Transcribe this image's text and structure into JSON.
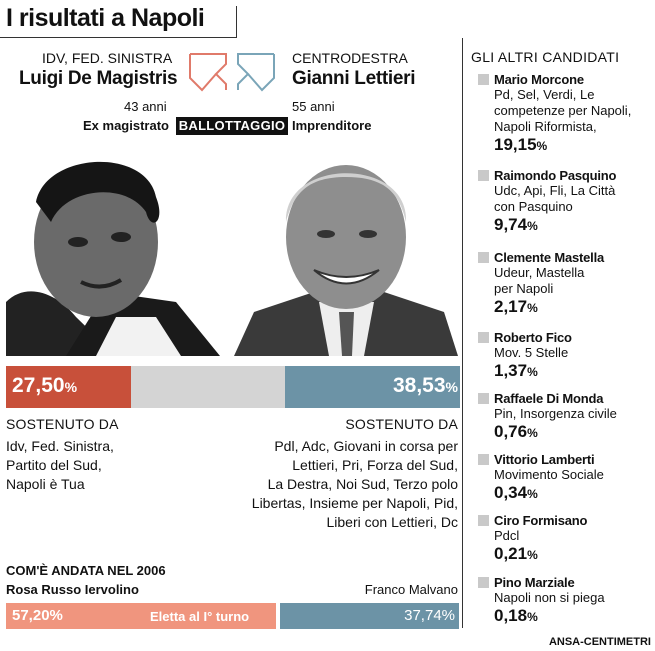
{
  "title": "I risultati a Napoli",
  "ballottaggio": "BALLOTTAGGIO",
  "left": {
    "party": "IDV, FED. SINISTRA",
    "name": "Luigi De Magistris",
    "age": "43 anni",
    "job": "Ex magistrato",
    "pct": "27,50",
    "pct_value": 27.5,
    "supported_title": "SOSTENUTO DA",
    "supported_lines": [
      "Idv, Fed. Sinistra,",
      "Partito del Sud,",
      "Napoli è Tua"
    ],
    "color": "#c8503a"
  },
  "right": {
    "party": "CENTRODESTRA",
    "name": "Gianni Lettieri",
    "age": "55 anni",
    "job": "Imprenditore",
    "pct": "38,53",
    "pct_value": 38.53,
    "supported_title": "SOSTENUTO DA",
    "supported_lines": [
      "Pdl, Adc, Giovani in corsa per",
      "Lettieri, Pri, Forza del Sud,",
      "La Destra, Noi Sud, Terzo polo",
      "Libertas, Insieme per Napoli, Pid,",
      "Liberi con Lettieri, Dc"
    ],
    "color": "#6c93a6"
  },
  "percent_sign": "%",
  "y2006": {
    "title": "COM'È ANDATA NEL 2006",
    "left_name": "Rosa Russo Iervolino",
    "left_pct": "57,20%",
    "left_value": 57.2,
    "left_note": "Eletta al I° turno",
    "right_name": "Franco Malvano",
    "right_pct": "37,74%",
    "right_value": 37.74,
    "left_color": "#f0957e",
    "right_color": "#6c93a6"
  },
  "others": {
    "title": "GLI ALTRI CANDIDATI",
    "candidates": [
      {
        "name": "Mario Morcone",
        "desc": [
          "Pd, Sel, Verdi, Le",
          "competenze per Napoli,",
          "Napoli Riformista,"
        ],
        "pct": "19,15"
      },
      {
        "name": "Raimondo Pasquino",
        "desc": [
          "Udc, Api, Fli, La Città",
          "con Pasquino"
        ],
        "pct": "9,74"
      },
      {
        "name": "Clemente Mastella",
        "desc": [
          "Udeur, Mastella",
          "per Napoli"
        ],
        "pct": "2,17"
      },
      {
        "name": "Roberto Fico",
        "desc": [
          "Mov. 5 Stelle"
        ],
        "pct": "1,37"
      },
      {
        "name": "Raffaele Di Monda",
        "desc": [
          "Pin, Insorgenza civile"
        ],
        "pct": "0,76"
      },
      {
        "name": "Vittorio Lamberti",
        "desc": [
          "Movimento Sociale"
        ],
        "pct": "0,34"
      },
      {
        "name": "Ciro Formisano",
        "desc": [
          "Pdcl"
        ],
        "pct": "0,21"
      },
      {
        "name": "Pino Marziale",
        "desc": [
          "Napoli non si piega"
        ],
        "pct": "0,18"
      }
    ]
  },
  "credit": "ANSA-CENTIMETRI"
}
